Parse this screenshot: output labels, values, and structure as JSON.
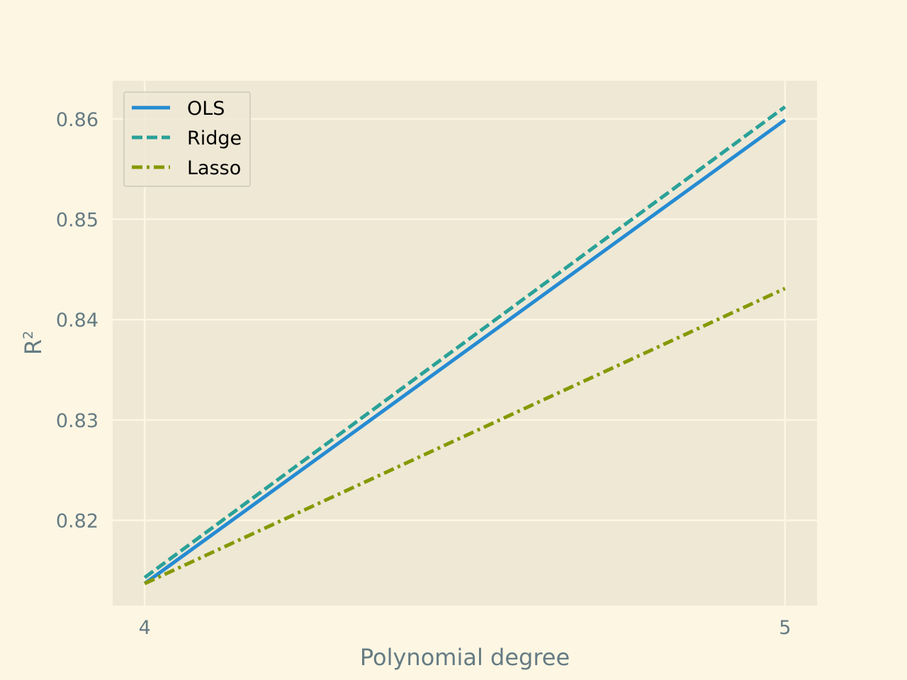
{
  "chart_data": {
    "type": "line",
    "x": [
      4,
      5
    ],
    "xticks": [
      "4",
      "5"
    ],
    "yticks": [
      "0.82",
      "0.83",
      "0.84",
      "0.85",
      "0.86"
    ],
    "ytick_values": [
      0.82,
      0.83,
      0.84,
      0.85,
      0.86
    ],
    "xlim": [
      3.95,
      5.05
    ],
    "ylim": [
      0.8115,
      0.8638
    ],
    "xlabel": "Polynomial degree",
    "ylabel": "R",
    "ylabel_sup": "2",
    "grid": true,
    "legend_position": "upper-left",
    "series": [
      {
        "name": "OLS",
        "values": [
          0.8137,
          0.8599
        ],
        "color": "#268bd2",
        "dash": "solid"
      },
      {
        "name": "Ridge",
        "values": [
          0.8143,
          0.8612
        ],
        "color": "#2aa198",
        "dash": "dashed"
      },
      {
        "name": "Lasso",
        "values": [
          0.8137,
          0.8431
        ],
        "color": "#859900",
        "dash": "dashdot"
      }
    ]
  },
  "colors": {
    "figure_bg": "#fdf6e3",
    "axes_bg": "#eee8d5",
    "grid": "#fdf6e3",
    "text": "#657b83"
  }
}
